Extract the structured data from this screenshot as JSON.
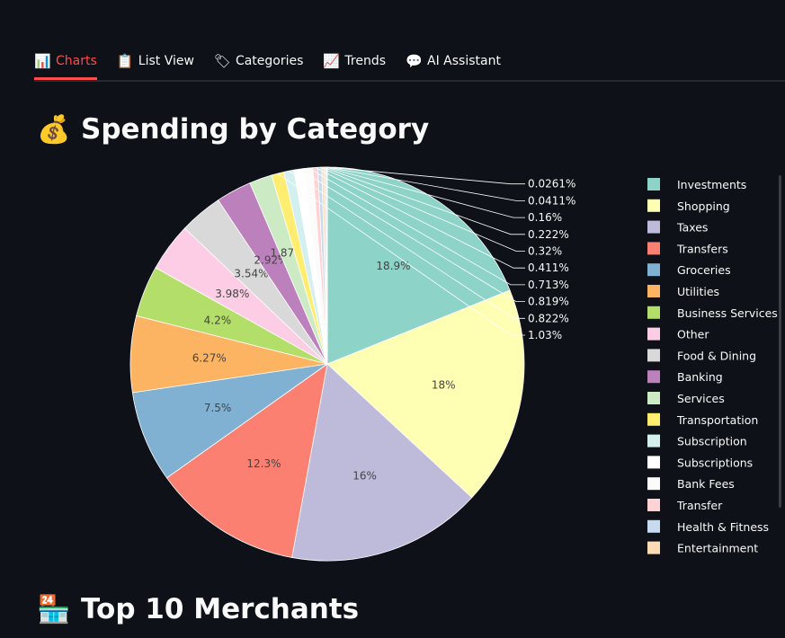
{
  "tabs": [
    {
      "icon": "bar-chart-icon",
      "glyph": "📊",
      "label": "Charts",
      "active": true
    },
    {
      "icon": "clipboard-icon",
      "glyph": "📋",
      "label": "List View",
      "active": false
    },
    {
      "icon": "tag-icon",
      "glyph": "🏷",
      "label": "Categories",
      "active": false
    },
    {
      "icon": "trend-chart-icon",
      "glyph": "📈",
      "label": "Trends",
      "active": false
    },
    {
      "icon": "speech-bubble-icon",
      "glyph": "💬",
      "label": "AI Assistant",
      "active": false
    }
  ],
  "sections": {
    "spending": {
      "icon": "money-bag-icon",
      "glyph": "💰",
      "title": "Spending by Category"
    },
    "merchants": {
      "icon": "store-icon",
      "glyph": "🏪",
      "title": "Top 10 Merchants"
    }
  },
  "colors": {
    "background": "#0e1117",
    "accent": "#ff4b4b"
  },
  "chart_data": {
    "type": "pie",
    "title": "",
    "legend_position": "right",
    "slices": [
      {
        "name": "Investments",
        "value": 18.9,
        "label": "18.9%",
        "color": "#8dd3c7"
      },
      {
        "name": "Shopping",
        "value": 18,
        "label": "18%",
        "color": "#ffffb3"
      },
      {
        "name": "Taxes",
        "value": 16,
        "label": "16%",
        "color": "#bebada"
      },
      {
        "name": "Transfers",
        "value": 12.3,
        "label": "12.3%",
        "color": "#fb8072"
      },
      {
        "name": "Groceries",
        "value": 7.5,
        "label": "7.5%",
        "color": "#80b1d3"
      },
      {
        "name": "Utilities",
        "value": 6.27,
        "label": "6.27%",
        "color": "#fdb462"
      },
      {
        "name": "Business Services",
        "value": 4.2,
        "label": "4.2%",
        "color": "#b3de69"
      },
      {
        "name": "Other",
        "value": 3.98,
        "label": "3.98%",
        "color": "#fccde5"
      },
      {
        "name": "Food & Dining",
        "value": 3.54,
        "label": "3.54%",
        "color": "#d9d9d9"
      },
      {
        "name": "Banking",
        "value": 2.92,
        "label": "2.92%",
        "color": "#bc80bd"
      },
      {
        "name": "Services",
        "value": 1.87,
        "label": "1.87%",
        "color": "#ccebc5"
      },
      {
        "name": "Transportation",
        "value": 1.03,
        "label": "1.03%",
        "color": "#ffed6f"
      },
      {
        "name": "Subscription",
        "value": 0.822,
        "label": "0.822%",
        "color": "#d4efef"
      },
      {
        "name": "Subscriptions",
        "value": 0.819,
        "label": "0.819%",
        "color": "#ffffff"
      },
      {
        "name": "Bank Fees",
        "value": 0.713,
        "label": "0.713%",
        "color": "#fbfbfb"
      },
      {
        "name": "Transfer",
        "value": 0.411,
        "label": "0.411%",
        "color": "#ffd3d3"
      },
      {
        "name": "Health & Fitness",
        "value": 0.32,
        "label": "0.32%",
        "color": "#c6dbef"
      },
      {
        "name": "Entertainment",
        "value": 0.222,
        "label": "0.222%",
        "color": "#fddbb4"
      },
      {
        "name": "",
        "value": 0.16,
        "label": "0.16%",
        "color": "#dfdcec"
      },
      {
        "name": "",
        "value": 0.0411,
        "label": "0.0411%",
        "color": "#fcc0b8"
      },
      {
        "name": "",
        "value": 0.0261,
        "label": "0.0261%",
        "color": "#fff7b0"
      }
    ]
  }
}
